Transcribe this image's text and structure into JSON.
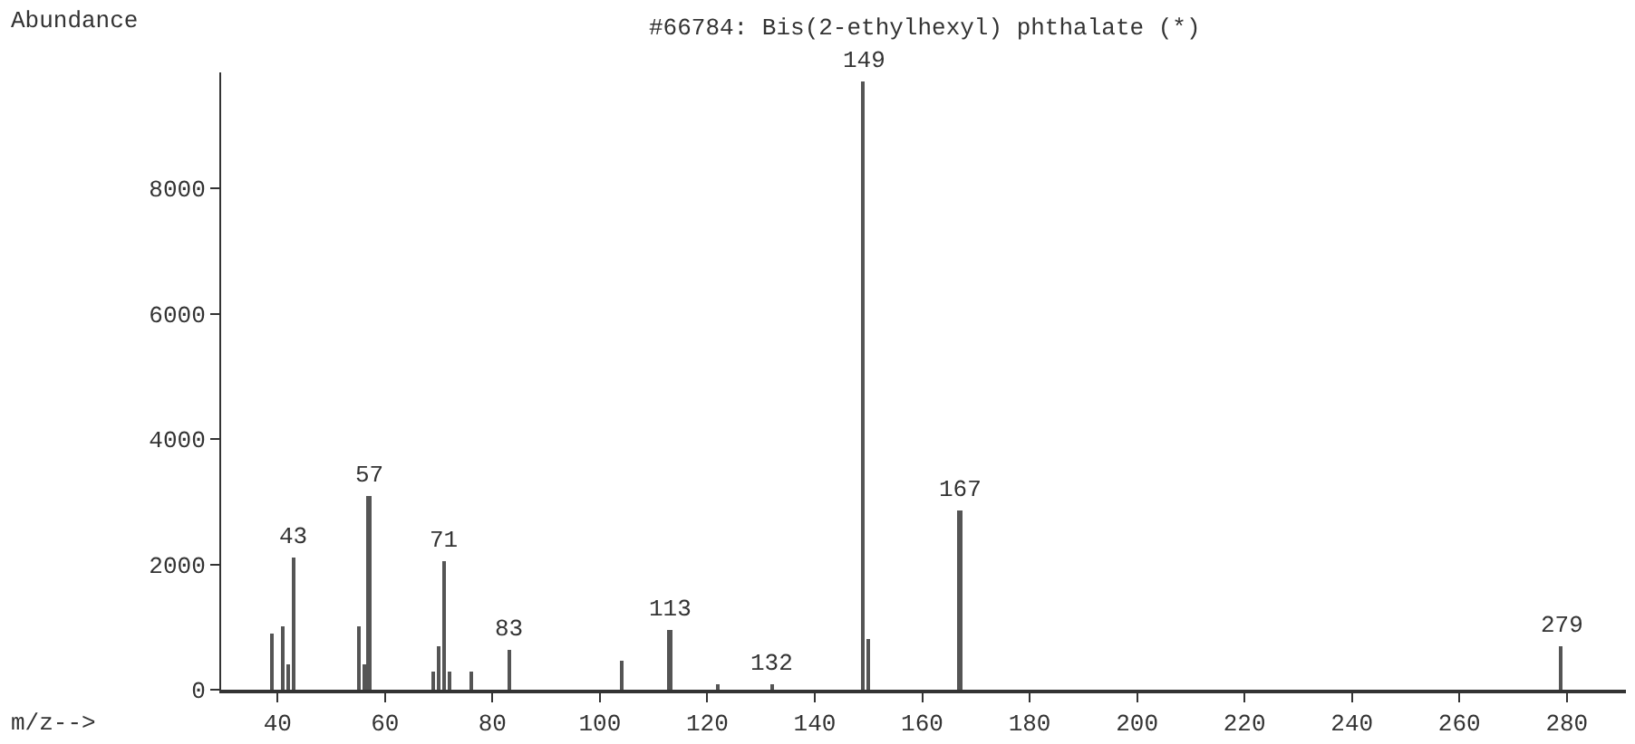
{
  "chart_data": {
    "type": "bar",
    "title": "#66784: Bis(2-ethylhexyl) phthalate (*)",
    "xlabel": "m/z-->",
    "ylabel": "Abundance",
    "x": [
      39,
      41,
      42,
      43,
      55,
      56,
      57,
      69,
      70,
      71,
      72,
      76,
      83,
      104,
      113,
      122,
      132,
      149,
      150,
      167,
      279
    ],
    "values": [
      900,
      1000,
      400,
      2100,
      1000,
      400,
      3100,
      300,
      700,
      2050,
      300,
      300,
      650,
      450,
      950,
      100,
      100,
      9700,
      800,
      2850,
      700
    ],
    "annotations": [
      {
        "text": "43",
        "x": 43,
        "y": 2100
      },
      {
        "text": "57",
        "x": 57,
        "y": 3100
      },
      {
        "text": "71",
        "x": 71,
        "y": 2050
      },
      {
        "text": "83",
        "x": 83,
        "y": 650
      },
      {
        "text": "113",
        "x": 113,
        "y": 950
      },
      {
        "text": "132",
        "x": 132,
        "y": 100
      },
      {
        "text": "149",
        "x": 149,
        "y": 9700
      },
      {
        "text": "167",
        "x": 167,
        "y": 2850
      },
      {
        "text": "279",
        "x": 279,
        "y": 700
      }
    ],
    "color": "#555555",
    "xlim": [
      29.5,
      291
    ],
    "xticks": [
      40,
      60,
      80,
      100,
      120,
      140,
      160,
      180,
      200,
      220,
      240,
      260,
      280
    ],
    "ylim": [
      0,
      9850
    ],
    "yticks": [
      0,
      2000,
      4000,
      6000,
      8000
    ],
    "grid": false
  }
}
